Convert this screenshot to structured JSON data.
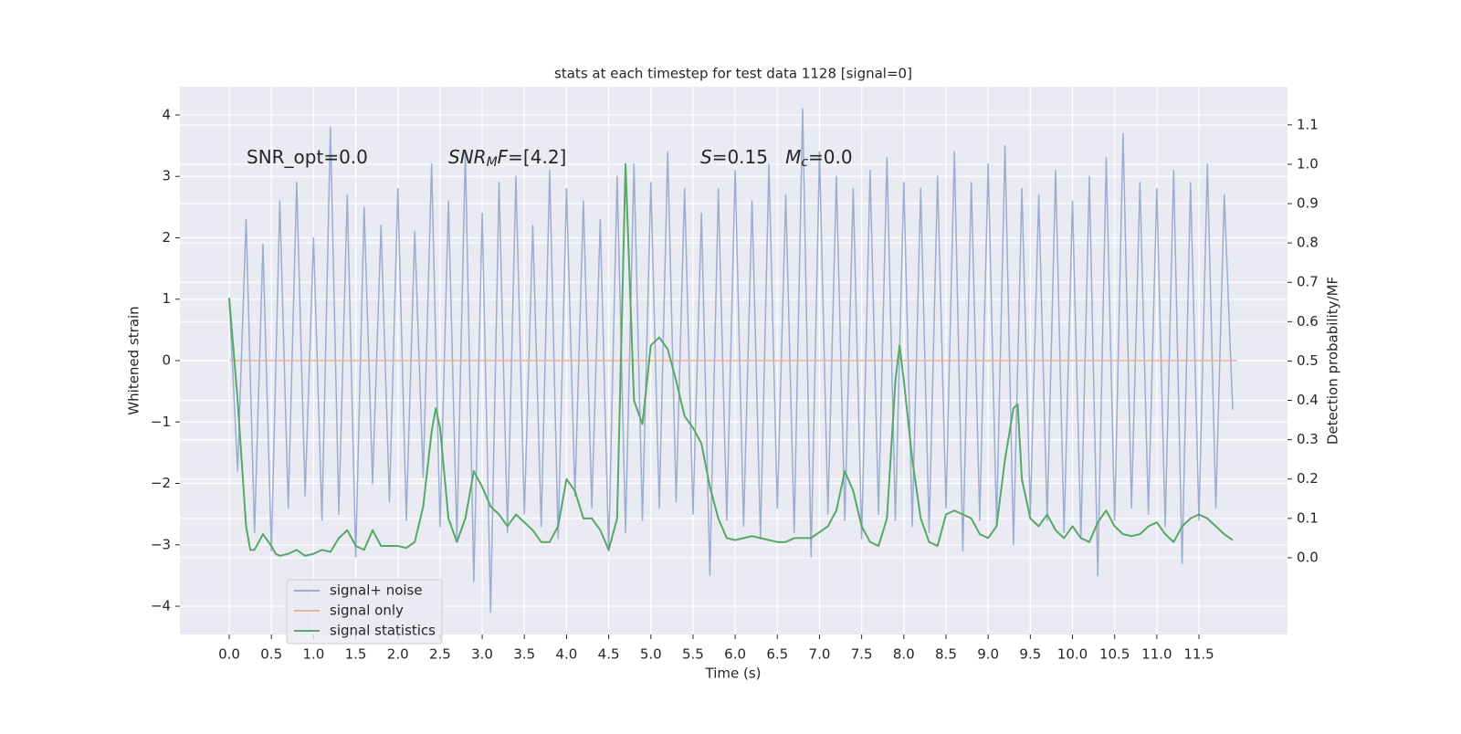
{
  "chart_data": {
    "type": "line",
    "title": "stats at each timestep for test data 1128 [signal=0]",
    "xlabel": "Time (s)",
    "ylabel": "Whitened strain",
    "y2label": "Detection probability/MF",
    "annotations": [
      {
        "parts": [
          {
            "text": "SNR_opt=0.0"
          }
        ]
      },
      {
        "parts": [
          {
            "text": "SNR",
            "italic": true
          },
          {
            "text": "M",
            "italic": true,
            "sub": true
          },
          {
            "text": "F",
            "italic": true
          },
          {
            "text": "=[4.2]"
          }
        ]
      },
      {
        "parts": [
          {
            "text": "S",
            "italic": true
          },
          {
            "text": "=0.15   "
          },
          {
            "text": "M",
            "italic": true
          },
          {
            "text": "c",
            "italic": true,
            "sub": true
          },
          {
            "text": "=0.0"
          }
        ]
      }
    ],
    "xlim": [
      -0.585,
      12.55
    ],
    "ylim": [
      -4.46,
      4.46
    ],
    "y2lim": [
      -0.195,
      1.197
    ],
    "xticks": [
      {
        "value": 0,
        "label": "0.0"
      },
      0.5,
      {
        "value": 1,
        "label": "1.0"
      },
      1.5,
      {
        "value": 2,
        "label": "2.0"
      },
      2.5,
      {
        "value": 3,
        "label": "3.0"
      },
      3.5,
      {
        "value": 4,
        "label": "4.0"
      },
      4.5,
      {
        "value": 5,
        "label": "5.0"
      },
      5.5,
      {
        "value": 6,
        "label": "6.0"
      },
      6.5,
      {
        "value": 7,
        "label": "7.0"
      },
      7.5,
      {
        "value": 8,
        "label": "8.0"
      },
      8.5,
      {
        "value": 9,
        "label": "9.0"
      },
      9.5,
      {
        "value": 10,
        "label": "10.0"
      },
      10.5,
      {
        "value": 11,
        "label": "11.0"
      },
      11.5
    ],
    "yticks": [
      {
        "value": -4,
        "label": "−4"
      },
      {
        "value": -3,
        "label": "−3"
      },
      {
        "value": -2,
        "label": "−2"
      },
      {
        "value": -1,
        "label": "−1"
      },
      0,
      1,
      2,
      3,
      4
    ],
    "y2ticks": [
      {
        "value": 0,
        "label": "0.0"
      },
      0.1,
      0.2,
      0.3,
      0.4,
      0.5,
      0.6,
      0.7,
      0.8,
      0.9,
      {
        "value": 1,
        "label": "1.0"
      },
      1.1
    ],
    "grid": true,
    "legend": "lower left",
    "series": [
      {
        "name": "signal+ noise",
        "color": "#9badd1",
        "x": [
          0.0,
          0.1,
          0.2,
          0.3,
          0.4,
          0.5,
          0.6,
          0.7,
          0.8,
          0.9,
          1.0,
          1.1,
          1.2,
          1.3,
          1.4,
          1.5,
          1.6,
          1.7,
          1.8,
          1.9,
          2.0,
          2.1,
          2.2,
          2.3,
          2.4,
          2.5,
          2.6,
          2.7,
          2.8,
          2.9,
          3.0,
          3.1,
          3.2,
          3.3,
          3.4,
          3.5,
          3.6,
          3.7,
          3.8,
          3.9,
          4.0,
          4.1,
          4.2,
          4.3,
          4.4,
          4.5,
          4.6,
          4.7,
          4.8,
          4.9,
          5.0,
          5.1,
          5.2,
          5.3,
          5.4,
          5.5,
          5.6,
          5.7,
          5.8,
          5.9,
          6.0,
          6.1,
          6.2,
          6.3,
          6.4,
          6.5,
          6.6,
          6.7,
          6.8,
          6.9,
          7.0,
          7.1,
          7.2,
          7.3,
          7.4,
          7.5,
          7.6,
          7.7,
          7.8,
          7.9,
          8.0,
          8.1,
          8.2,
          8.3,
          8.4,
          8.5,
          8.6,
          8.7,
          8.8,
          8.9,
          9.0,
          9.1,
          9.2,
          9.3,
          9.4,
          9.5,
          9.6,
          9.7,
          9.8,
          9.9,
          10.0,
          10.1,
          10.2,
          10.3,
          10.4,
          10.5,
          10.6,
          10.7,
          10.8,
          10.9,
          11.0,
          11.1,
          11.2,
          11.3,
          11.4,
          11.5,
          11.6,
          11.7,
          11.8,
          11.9
        ],
        "values": [
          1.0,
          -1.8,
          2.3,
          -2.8,
          1.9,
          -3.1,
          2.6,
          -2.4,
          2.9,
          -2.2,
          2.0,
          -2.6,
          3.8,
          -2.5,
          2.7,
          -3.2,
          2.5,
          -2.0,
          2.2,
          -2.3,
          2.8,
          -2.6,
          2.1,
          -1.9,
          3.2,
          -2.7,
          2.6,
          -2.9,
          3.4,
          -3.6,
          2.4,
          -4.1,
          2.9,
          -2.8,
          3.0,
          -2.5,
          2.2,
          -2.7,
          3.1,
          -2.9,
          2.8,
          -2.2,
          2.6,
          -2.4,
          2.3,
          -3.1,
          3.0,
          -2.8,
          3.2,
          -2.6,
          2.9,
          -2.4,
          3.4,
          -2.3,
          2.8,
          -2.5,
          2.4,
          -3.5,
          2.8,
          -2.6,
          3.1,
          -2.7,
          2.6,
          -2.9,
          3.2,
          -2.4,
          2.7,
          -2.8,
          4.1,
          -3.2,
          3.4,
          -2.5,
          3.0,
          -2.6,
          2.8,
          -2.9,
          3.1,
          -2.5,
          3.3,
          -2.6,
          2.9,
          -2.7,
          2.8,
          -2.8,
          3.0,
          -2.4,
          3.4,
          -3.1,
          2.9,
          -2.6,
          3.2,
          -2.7,
          3.5,
          -3.0,
          2.8,
          -2.5,
          2.7,
          -2.6,
          3.1,
          -2.8,
          2.6,
          -2.9,
          3.0,
          -3.5,
          3.3,
          -2.6,
          3.7,
          -2.4,
          2.9,
          -2.5,
          2.8,
          -2.7,
          3.1,
          -3.3,
          2.9,
          -2.6,
          3.2,
          -2.4,
          2.7,
          -0.8
        ]
      },
      {
        "name": "signal only",
        "color": "#e8b39a",
        "x": [
          0,
          11.95
        ],
        "values": [
          0,
          0
        ]
      },
      {
        "name": "signal statistics",
        "color": "#55a868",
        "axis": "y2",
        "x": [
          0.0,
          0.1,
          0.2,
          0.25,
          0.3,
          0.4,
          0.5,
          0.55,
          0.6,
          0.7,
          0.8,
          0.9,
          1.0,
          1.1,
          1.2,
          1.3,
          1.4,
          1.5,
          1.6,
          1.7,
          1.8,
          1.9,
          2.0,
          2.1,
          2.2,
          2.3,
          2.4,
          2.45,
          2.5,
          2.6,
          2.7,
          2.8,
          2.9,
          3.0,
          3.1,
          3.2,
          3.3,
          3.4,
          3.5,
          3.6,
          3.7,
          3.8,
          3.9,
          4.0,
          4.1,
          4.2,
          4.3,
          4.4,
          4.5,
          4.6,
          4.7,
          4.8,
          4.9,
          5.0,
          5.1,
          5.2,
          5.3,
          5.4,
          5.5,
          5.6,
          5.7,
          5.8,
          5.9,
          6.0,
          6.1,
          6.2,
          6.3,
          6.4,
          6.5,
          6.6,
          6.7,
          6.8,
          6.9,
          7.0,
          7.1,
          7.2,
          7.3,
          7.4,
          7.5,
          7.6,
          7.7,
          7.8,
          7.9,
          7.95,
          8.0,
          8.1,
          8.2,
          8.3,
          8.4,
          8.5,
          8.6,
          8.7,
          8.8,
          8.9,
          9.0,
          9.1,
          9.2,
          9.3,
          9.35,
          9.4,
          9.5,
          9.6,
          9.7,
          9.8,
          9.9,
          10.0,
          10.1,
          10.2,
          10.3,
          10.4,
          10.5,
          10.6,
          10.7,
          10.8,
          10.9,
          11.0,
          11.1,
          11.2,
          11.3,
          11.4,
          11.5,
          11.6,
          11.7,
          11.8,
          11.9
        ],
        "values": [
          0.66,
          0.4,
          0.08,
          0.02,
          0.02,
          0.06,
          0.03,
          0.01,
          0.005,
          0.01,
          0.02,
          0.005,
          0.01,
          0.02,
          0.015,
          0.05,
          0.07,
          0.03,
          0.02,
          0.07,
          0.03,
          0.03,
          0.03,
          0.025,
          0.04,
          0.13,
          0.32,
          0.38,
          0.33,
          0.1,
          0.04,
          0.1,
          0.22,
          0.18,
          0.13,
          0.11,
          0.08,
          0.11,
          0.09,
          0.07,
          0.04,
          0.04,
          0.08,
          0.2,
          0.17,
          0.1,
          0.1,
          0.07,
          0.02,
          0.1,
          1.0,
          0.4,
          0.34,
          0.54,
          0.56,
          0.53,
          0.45,
          0.36,
          0.33,
          0.29,
          0.18,
          0.1,
          0.05,
          0.045,
          0.05,
          0.055,
          0.05,
          0.045,
          0.04,
          0.04,
          0.05,
          0.05,
          0.05,
          0.065,
          0.08,
          0.12,
          0.22,
          0.17,
          0.08,
          0.04,
          0.03,
          0.1,
          0.45,
          0.54,
          0.45,
          0.25,
          0.1,
          0.04,
          0.03,
          0.11,
          0.12,
          0.11,
          0.1,
          0.06,
          0.05,
          0.08,
          0.25,
          0.38,
          0.39,
          0.2,
          0.1,
          0.08,
          0.11,
          0.07,
          0.05,
          0.08,
          0.05,
          0.04,
          0.09,
          0.12,
          0.08,
          0.06,
          0.055,
          0.06,
          0.08,
          0.09,
          0.06,
          0.04,
          0.08,
          0.1,
          0.11,
          0.1,
          0.08,
          0.06,
          0.045
        ]
      }
    ]
  }
}
